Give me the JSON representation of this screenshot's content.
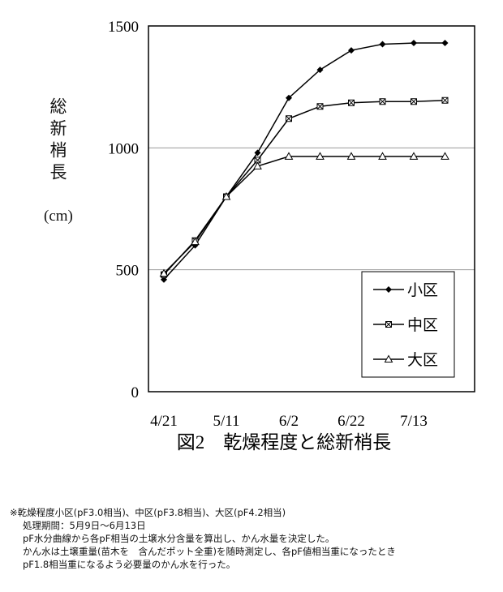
{
  "chart_data": {
    "type": "line",
    "title": "図2　乾燥程度と総新梢長",
    "ylabel": [
      "総新梢長",
      "(cm)"
    ],
    "categories": [
      "4/21",
      null,
      "5/11",
      null,
      "6/2",
      null,
      "6/22",
      null,
      "7/13",
      null
    ],
    "series": [
      {
        "name": "小区",
        "color": "#000000",
        "marker": "diamond",
        "values": [
          460,
          600,
          800,
          980,
          1205,
          1320,
          1400,
          1425,
          1430,
          1430
        ]
      },
      {
        "name": "中区",
        "color": "#000000",
        "marker": "square",
        "values": [
          480,
          620,
          800,
          950,
          1120,
          1170,
          1185,
          1190,
          1190,
          1195
        ]
      },
      {
        "name": "大区",
        "color": "#000000",
        "marker": "triangle",
        "values": [
          485,
          615,
          800,
          925,
          965,
          965,
          965,
          965,
          965,
          965
        ]
      }
    ],
    "ylim": [
      0,
      1500
    ],
    "yticks": [
      0,
      500,
      1000,
      1500
    ],
    "grid": true,
    "legend": "lower right",
    "notes": [
      "※乾燥程度小区(pF3.0相当)、中区(pF3.8相当)、大区(pF4.2相当)",
      "処理期間：5月9日～6月13日",
      "pF水分曲線から各pF相当の土壌水分含量を算出し、かん水量を決定した。",
      "かん水は土壌重量(苗木を　含んだポット全重)を随時測定し、各pF値相当重になったとき",
      "pF1.8相当重になるよう必要量のかん水を行った。"
    ]
  }
}
